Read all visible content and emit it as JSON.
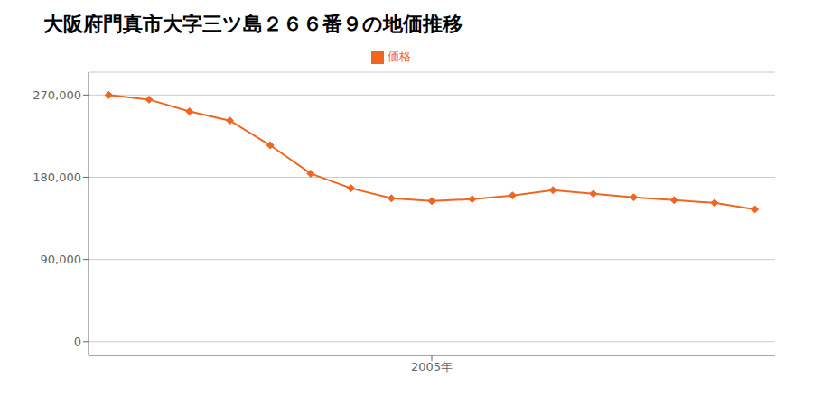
{
  "chart_data": {
    "type": "line",
    "title": "大阪府門真市大字三ツ島２６６番９の地価推移",
    "x": [
      1997,
      1998,
      1999,
      2000,
      2001,
      2002,
      2003,
      2004,
      2005,
      2006,
      2007,
      2008,
      2009,
      2010,
      2011,
      2012,
      2013
    ],
    "series": [
      {
        "name": "価格",
        "color": "#ee6622",
        "marker": "diamond",
        "values": [
          270000,
          265000,
          252000,
          242000,
          215000,
          184000,
          168000,
          157000,
          154000,
          156000,
          160000,
          166000,
          162000,
          158000,
          155000,
          152000,
          145000
        ]
      }
    ],
    "xlim": [
      1996.5,
      2013.5
    ],
    "xticks": [
      {
        "value": 2005,
        "label": "2005年"
      }
    ],
    "ylim": [
      -15000,
      295000
    ],
    "yticks": [
      0,
      {
        "value": 90000,
        "label": "90,000"
      },
      {
        "value": 180000,
        "label": "180,000"
      },
      {
        "value": 270000,
        "label": "270,000"
      }
    ],
    "grid": true,
    "legend": "top"
  }
}
